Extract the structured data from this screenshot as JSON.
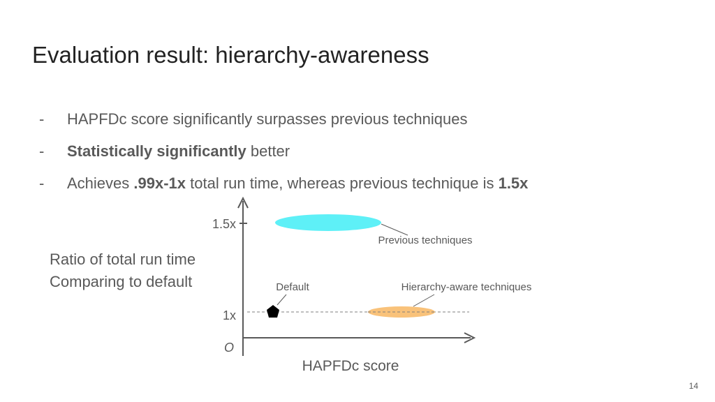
{
  "slide": {
    "title": "Evaluation result: hierarchy-awareness",
    "bullets": [
      {
        "dash": "-",
        "parts": [
          {
            "text": "HAPFDc score significantly surpasses previous techniques",
            "bold": false
          }
        ]
      },
      {
        "dash": "-",
        "parts": [
          {
            "text": "Statistically significantly",
            "bold": true
          },
          {
            "text": " better",
            "bold": false
          }
        ]
      },
      {
        "dash": "-",
        "parts": [
          {
            "text": "Achieves ",
            "bold": false
          },
          {
            "text": ".99x-1x",
            "bold": true
          },
          {
            "text": " total run time, whereas previous technique is ",
            "bold": false
          },
          {
            "text": "1.5x",
            "bold": true
          }
        ]
      }
    ],
    "page_number": "14"
  },
  "diagram": {
    "ylabel_lines": [
      "Ratio of total run time",
      "Comparing to default"
    ],
    "xlabel": "HAPFDc score",
    "origin_label": "O",
    "ticks": [
      {
        "value": 1.5,
        "label": "1.5x"
      },
      {
        "value": 1.0,
        "label": "1x"
      }
    ],
    "items": [
      {
        "name": "Previous techniques",
        "label": "Previous techniques",
        "shape": "ellipse",
        "color": "#5ef0f7"
      },
      {
        "name": "Default",
        "label": "Default",
        "shape": "pentagon",
        "color": "#000000"
      },
      {
        "name": "Hierarchy-aware techniques",
        "label": "Hierarchy-aware techniques",
        "shape": "ellipse",
        "color": "#f9c27a"
      }
    ],
    "axis_color": "#595959",
    "reference_line_color": "#7f7f7f"
  }
}
